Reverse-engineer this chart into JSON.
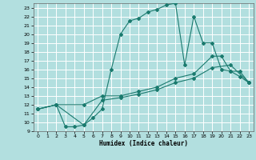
{
  "xlabel": "Humidex (Indice chaleur)",
  "xlim": [
    -0.5,
    23.5
  ],
  "ylim": [
    9,
    23.5
  ],
  "xticks": [
    0,
    1,
    2,
    3,
    4,
    5,
    6,
    7,
    8,
    9,
    10,
    11,
    12,
    13,
    14,
    15,
    16,
    17,
    18,
    19,
    20,
    21,
    22,
    23
  ],
  "yticks": [
    9,
    10,
    11,
    12,
    13,
    14,
    15,
    16,
    17,
    18,
    19,
    20,
    21,
    22,
    23
  ],
  "bg_color": "#b2dfdf",
  "grid_color": "#ffffff",
  "line_color": "#1a7a6e",
  "line1_x": [
    0,
    2,
    3,
    4,
    5,
    6,
    7,
    8,
    9,
    10,
    11,
    12,
    13,
    14,
    15,
    16,
    17,
    18,
    19,
    20,
    21,
    22,
    23
  ],
  "line1_y": [
    11.5,
    12.0,
    9.5,
    9.5,
    9.7,
    10.5,
    11.5,
    16.0,
    20.0,
    21.5,
    21.8,
    22.5,
    22.8,
    23.3,
    23.5,
    16.5,
    22.0,
    19.0,
    19.0,
    16.0,
    15.8,
    15.2,
    14.5
  ],
  "line2_x": [
    0,
    2,
    5,
    7,
    9,
    11,
    13,
    15,
    17,
    19,
    20,
    21,
    22,
    23
  ],
  "line2_y": [
    11.5,
    12.0,
    12.0,
    13.0,
    13.0,
    13.5,
    14.0,
    15.0,
    15.5,
    17.5,
    17.5,
    15.8,
    15.8,
    14.5
  ],
  "line3_x": [
    0,
    2,
    5,
    7,
    9,
    11,
    13,
    15,
    17,
    19,
    21,
    23
  ],
  "line3_y": [
    11.5,
    12.0,
    9.7,
    12.5,
    12.8,
    13.2,
    13.7,
    14.5,
    15.0,
    16.2,
    16.5,
    14.5
  ]
}
